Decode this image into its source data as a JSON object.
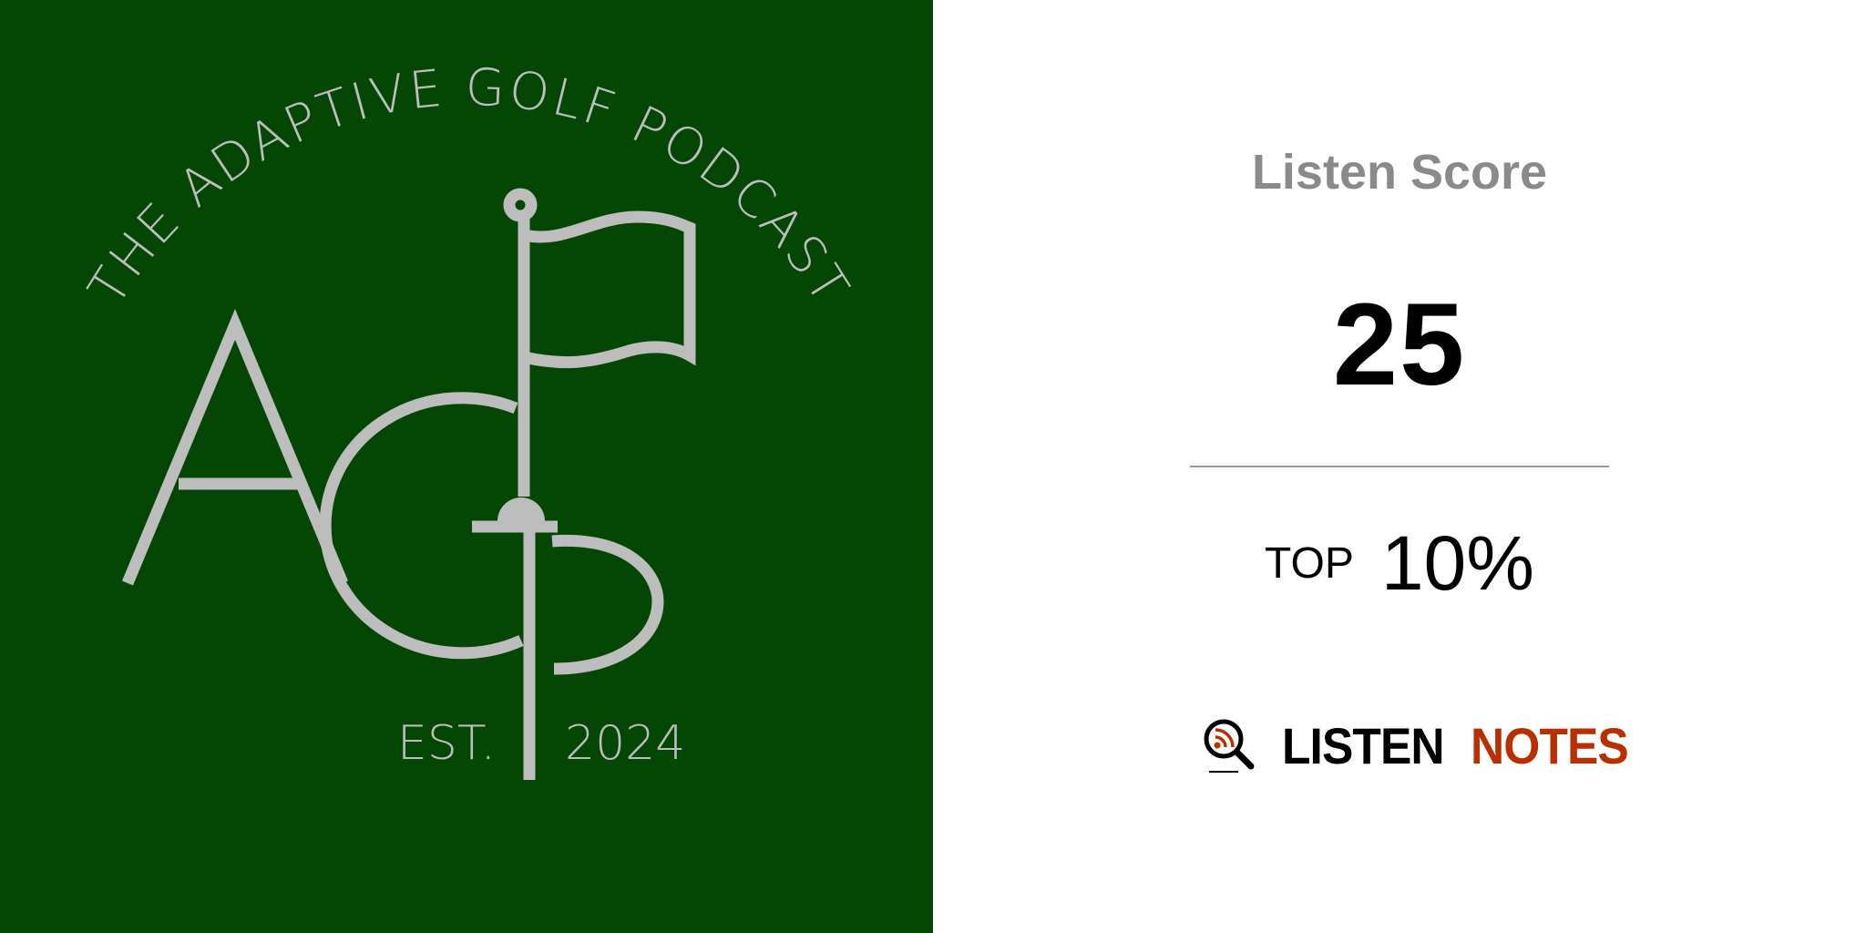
{
  "artwork": {
    "arc_title": "THE ADAPTIVE GOLF PODCAST",
    "monogram": "AGP",
    "est_label": "EST.",
    "est_year": "2024",
    "background_color": "#044704",
    "ink_color": "#bdbdbd"
  },
  "score": {
    "label": "Listen Score",
    "value": "25",
    "rank_prefix": "TOP",
    "rank_value": "10%"
  },
  "brand": {
    "icon": "magnifier-rss-icon",
    "word1": "LISTEN",
    "word2": "NOTES",
    "color_dark": "#000000",
    "color_accent": "#b83000"
  }
}
